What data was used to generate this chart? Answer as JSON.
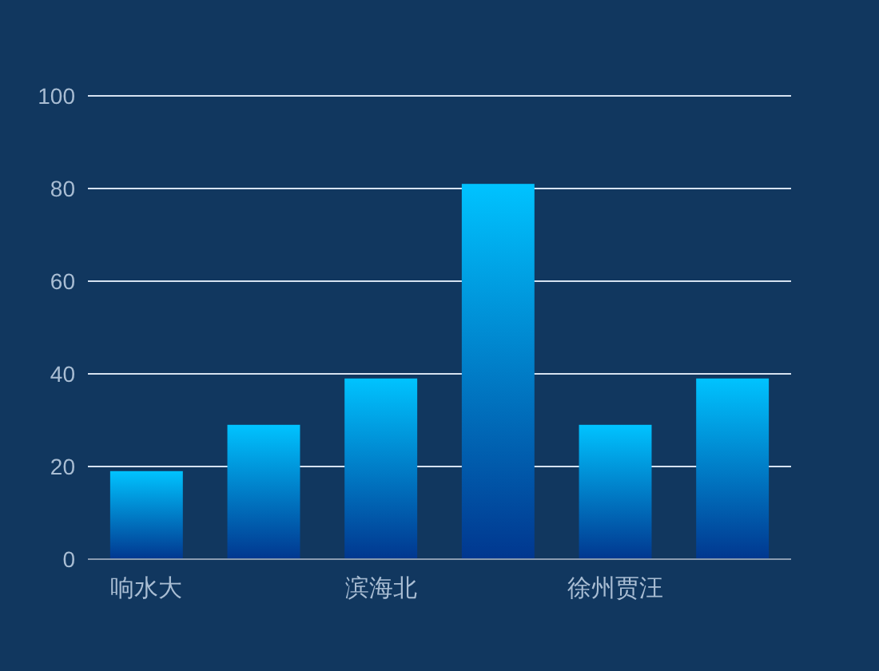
{
  "chart_data": {
    "type": "bar",
    "categories": [
      "响水大",
      null,
      "滨海北",
      null,
      "徐州贾汪",
      null
    ],
    "values": [
      19,
      29,
      39,
      81,
      29,
      39
    ],
    "color": "#00c3ff",
    "ylim": [
      0,
      100
    ],
    "yticks": [
      0,
      20,
      40,
      60,
      80,
      100
    ],
    "grid": "y"
  }
}
